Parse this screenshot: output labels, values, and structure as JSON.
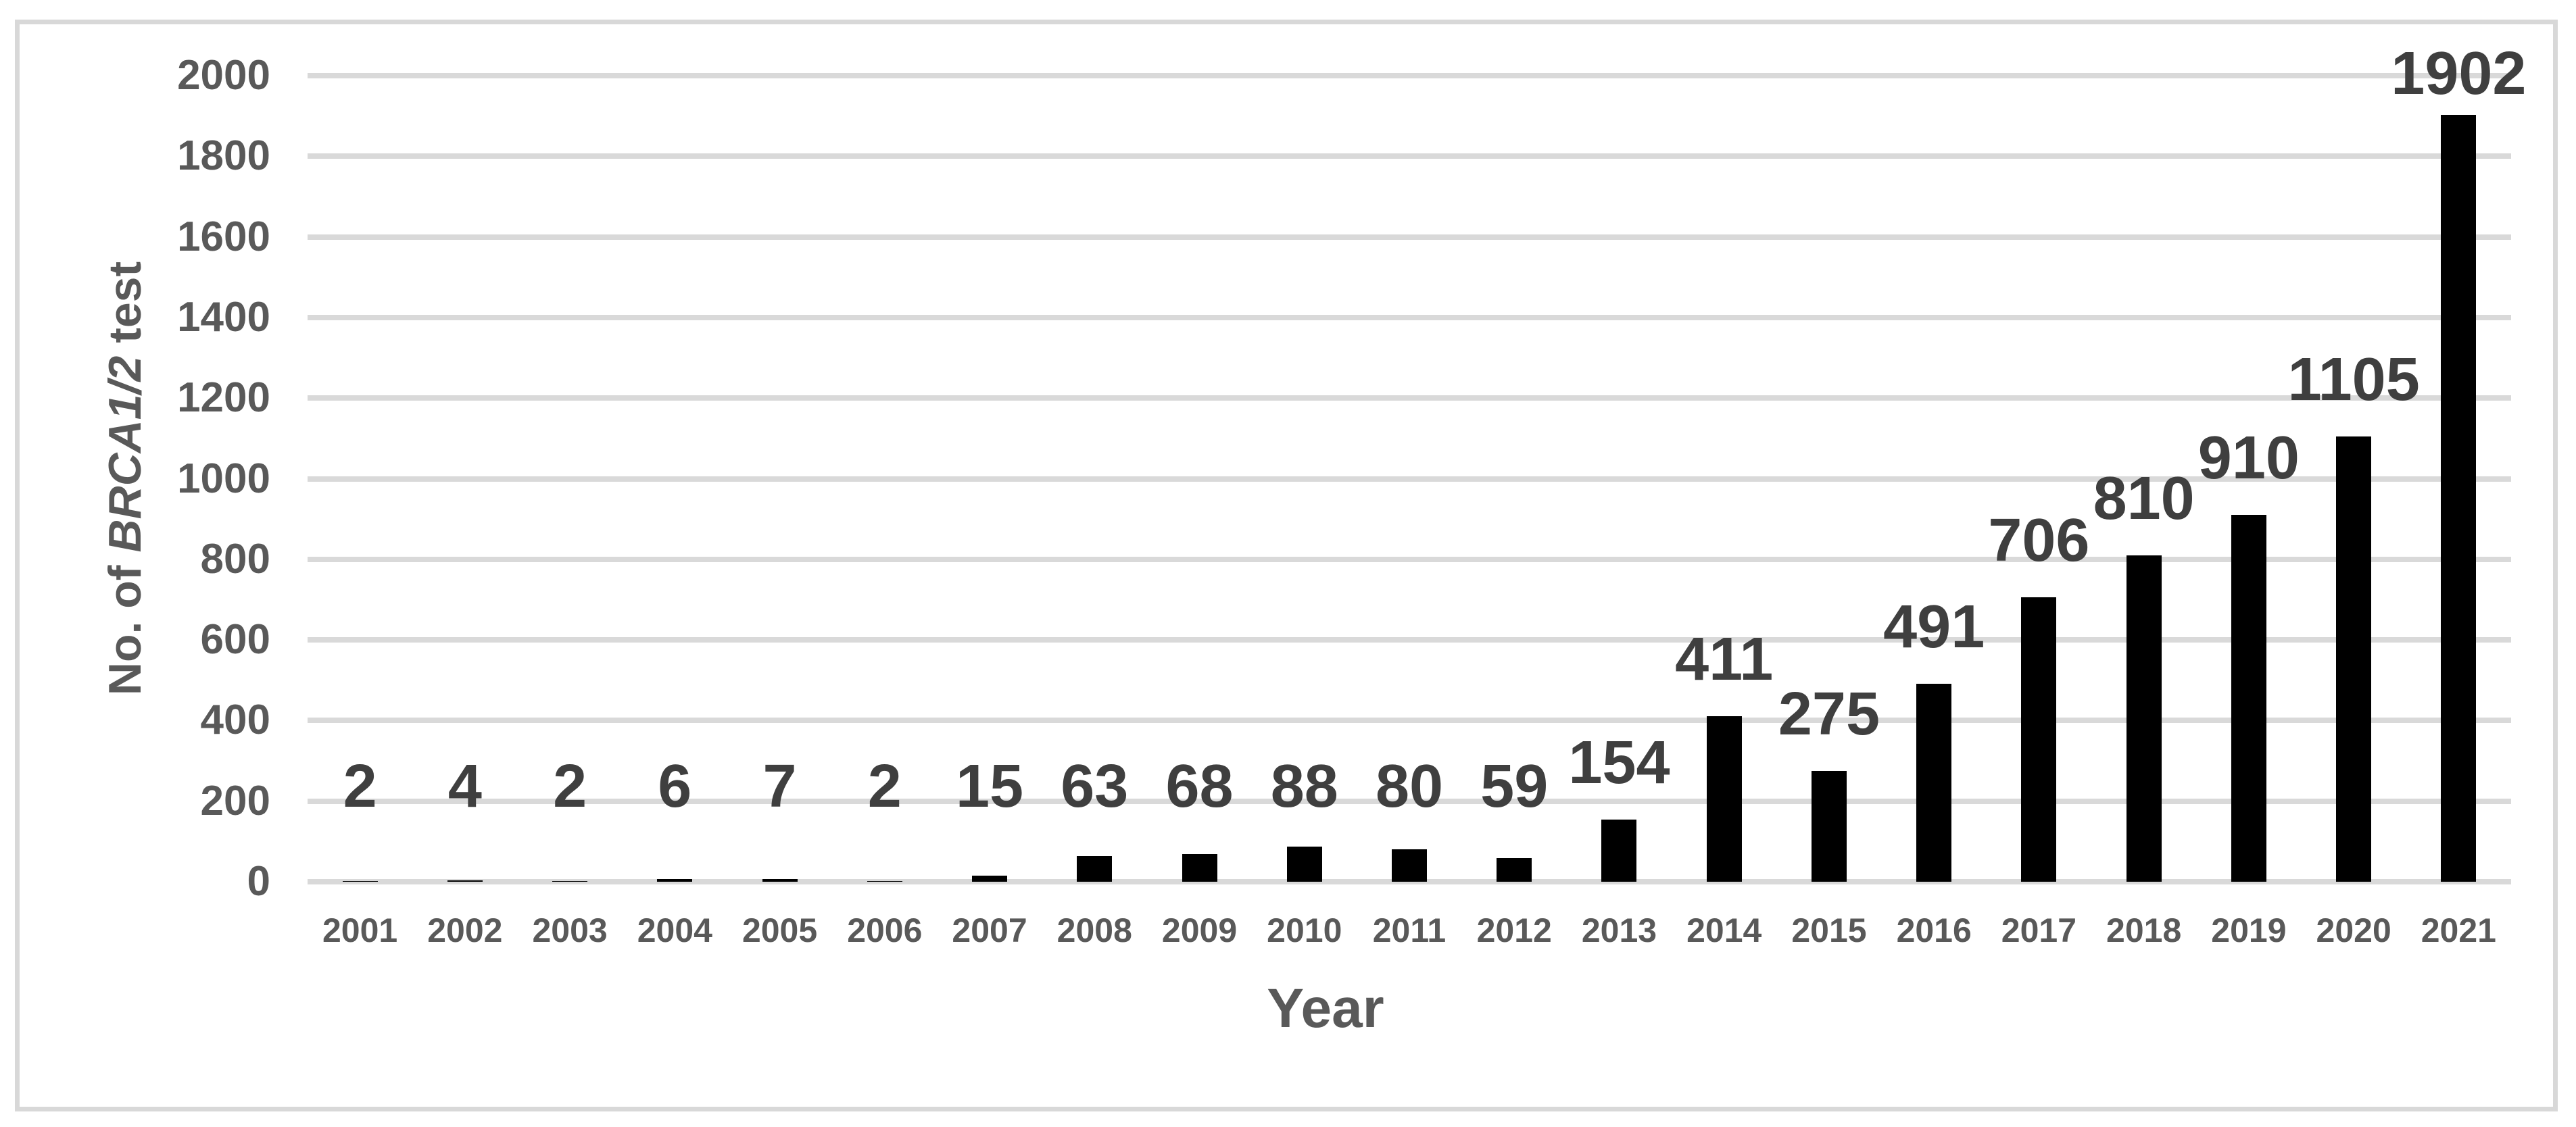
{
  "figure": {
    "background": "#ffffff",
    "border_color": "#d8d8d8"
  },
  "chart_data": {
    "type": "bar",
    "title": "",
    "xlabel": "Year",
    "ylabel_prefix": "No. of ",
    "ylabel_italic": "BRCA1/2",
    "ylabel_suffix": " test",
    "categories": [
      "2001",
      "2002",
      "2003",
      "2004",
      "2005",
      "2006",
      "2007",
      "2008",
      "2009",
      "2010",
      "2011",
      "2012",
      "2013",
      "2014",
      "2015",
      "2016",
      "2017",
      "2018",
      "2019",
      "2020",
      "2021"
    ],
    "values": [
      2,
      4,
      2,
      6,
      7,
      2,
      15,
      63,
      68,
      88,
      80,
      59,
      154,
      411,
      275,
      491,
      706,
      810,
      910,
      1105,
      1902
    ],
    "data_labels": [
      2,
      4,
      2,
      6,
      7,
      2,
      15,
      63,
      68,
      88,
      80,
      59,
      154,
      411,
      275,
      491,
      706,
      810,
      910,
      1105,
      1902
    ],
    "ylim": [
      0,
      2000
    ],
    "yticks": [
      0,
      200,
      400,
      600,
      800,
      1000,
      1200,
      1400,
      1600,
      1800,
      2000
    ],
    "grid": true,
    "legend": "none",
    "bar_color": "#000000",
    "gridline_color": "#d9d9d9",
    "data_label_color": "#3f3f3f",
    "axis_text_color": "#595959"
  }
}
